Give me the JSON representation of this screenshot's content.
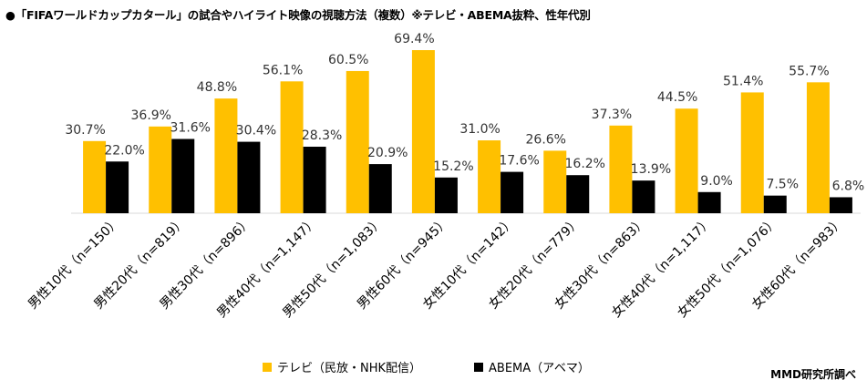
{
  "title": "●「FIFAワールドカップカタール」の試合やハイライト映像の視聴方法（複数）※テレビ・ABEMA抜粋、性年代別",
  "credit": "MMD研究所調べ",
  "colors": {
    "tv": "#FFC000",
    "abema": "#000000",
    "axis": "#d9d9d9"
  },
  "chart_data": {
    "type": "bar",
    "categories": [
      "男性10代（n=150）",
      "男性20代（n=819）",
      "男性30代（n=896）",
      "男性40代（n=1,147）",
      "男性50代（n=1,083）",
      "男性60代（n=945）",
      "女性10代（n=142）",
      "女性20代（n=779）",
      "女性30代（n=863）",
      "女性40代（n=1,117）",
      "女性50代（n=1,076）",
      "女性60代（n=983）"
    ],
    "series": [
      {
        "name": "テレビ（民放・NHK配信）",
        "values": [
          30.7,
          36.9,
          48.8,
          56.1,
          60.5,
          69.4,
          31.0,
          26.6,
          37.3,
          44.5,
          51.4,
          55.7
        ]
      },
      {
        "name": "ABEMA（アベマ）",
        "values": [
          22.0,
          31.6,
          30.4,
          28.3,
          20.9,
          15.2,
          17.6,
          16.2,
          13.9,
          9.0,
          7.5,
          6.8
        ]
      }
    ],
    "value_labels": [
      [
        "30.7%",
        "36.9%",
        "48.8%",
        "56.1%",
        "60.5%",
        "69.4%",
        "31.0%",
        "26.6%",
        "37.3%",
        "44.5%",
        "51.4%",
        "55.7%"
      ],
      [
        "22.0%",
        "31.6%",
        "30.4%",
        "28.3%",
        "20.9%",
        "15.2%",
        "17.6%",
        "16.2%",
        "13.9%",
        "9.0%",
        "7.5%",
        "6.8%"
      ]
    ],
    "ylim": [
      0,
      70
    ],
    "grid": false,
    "legend_position": "bottom"
  }
}
